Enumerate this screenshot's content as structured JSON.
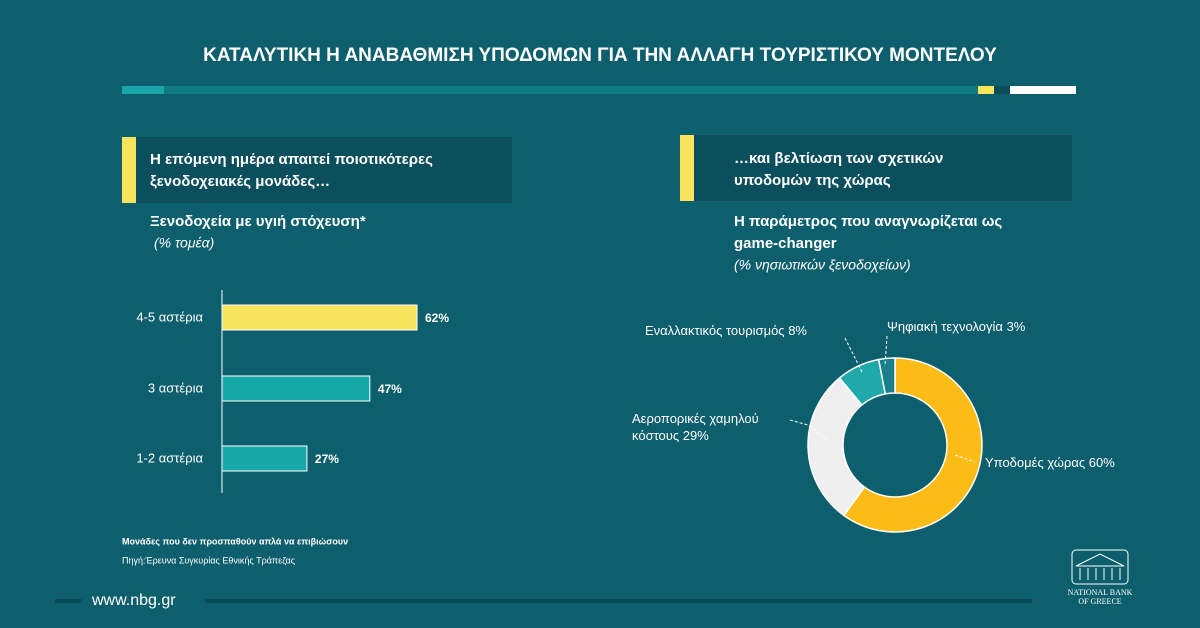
{
  "title": "ΚΑΤΑΛΥΤΙΚΗ Η ΑΝΑΒΑΘΜΙΣΗ ΥΠΟΔΟΜΩΝ ΓΙΑ ΤΗΝ ΑΛΛΑΓΗ ΤΟΥΡΙΣΤΙΚΟΥ ΜΟΝΤΕΛΟΥ",
  "chart_data": [
    {
      "type": "bar",
      "orientation": "horizontal",
      "heading": [
        "Η επόμενη ημέρα απαιτεί ποιοτικότερες",
        "ξενοδοχειακές μονάδες…"
      ],
      "title": "Ξενοδοχεία με υγιή στόχευση*",
      "subtitle": "(% τομέα)",
      "categories": [
        "4-5 αστέρια",
        "3 αστέρια",
        "1-2 αστέρια"
      ],
      "values": [
        62,
        47,
        27
      ],
      "value_labels": [
        "62%",
        "47%",
        "27%"
      ],
      "colors": [
        "#f7e35c",
        "#17a8aa",
        "#17a8aa"
      ]
    },
    {
      "type": "donut",
      "heading": [
        "…και βελτίωση των σχετικών",
        "υποδομών της χώρας"
      ],
      "title": [
        "Η παράμετρος που  αναγνωρίζεται ως",
        "game-changer"
      ],
      "subtitle": "(% νησιωτικών ξενοδοχείων)",
      "categories": [
        "Υποδομές χώρας",
        "Αεροπορικές χαμηλού κόστους",
        "Εναλλακτικός τουρισμός",
        "Ψηφιακή τεχνολογία"
      ],
      "values": [
        60,
        29,
        8,
        3
      ],
      "value_labels": [
        "60%",
        "29%",
        "8%",
        "3%"
      ],
      "colors": [
        "#fbbc17",
        "#efefef",
        "#1fa9aa",
        "#1a7f8c"
      ]
    }
  ],
  "footnote": "Μονάδες που δεν προσπαθούν απλά να επιβιώσουν",
  "source": "Πηγή:Έρευνα Συγκυρίας Εθνικής Τράπεζας",
  "website": "www.nbg.gr",
  "logo": [
    "NATIONAL BANK",
    "OF GREECE"
  ]
}
